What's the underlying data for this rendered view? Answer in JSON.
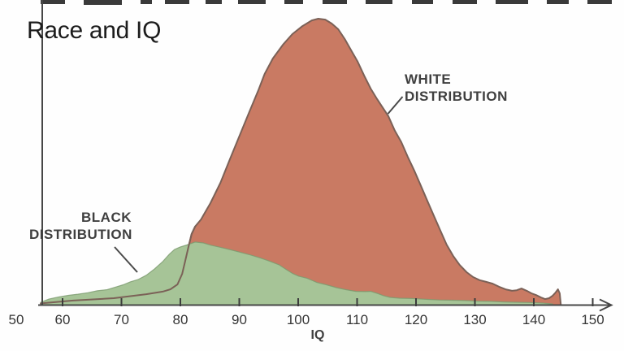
{
  "title": "Race and IQ",
  "labels": {
    "xlabel": "IQ"
  },
  "chart_data": {
    "type": "area",
    "title": "Race and IQ",
    "xlabel": "IQ",
    "ylabel": "",
    "x_range": [
      50,
      150
    ],
    "x_ticks": [
      50,
      60,
      70,
      80,
      90,
      100,
      110,
      120,
      130,
      140,
      150
    ],
    "y_axis_note": "relative frequency, unlabeled axis",
    "legend": "none (inline annotations with leader lines)",
    "annotations": [
      {
        "id": "white",
        "lines": [
          "WHITE",
          "DISTRIBUTION"
        ],
        "points_to": "red curve right flank near IQ 112"
      },
      {
        "id": "black",
        "lines": [
          "BLACK",
          "DISTRIBUTION"
        ],
        "points_to": "green curve left flank near IQ 73"
      }
    ],
    "series": [
      {
        "name": "WHITE DISTRIBUTION",
        "color": "#c97a63",
        "stroke": "#7b6157",
        "peak_iq": 103,
        "points": [
          [
            56.3,
            0.006
          ],
          [
            61.8,
            0.016
          ],
          [
            68.7,
            0.024
          ],
          [
            74.2,
            0.038
          ],
          [
            77.0,
            0.047
          ],
          [
            78.3,
            0.055
          ],
          [
            79.5,
            0.072
          ],
          [
            80.3,
            0.109
          ],
          [
            80.8,
            0.152
          ],
          [
            81.4,
            0.206
          ],
          [
            81.9,
            0.248
          ],
          [
            82.5,
            0.274
          ],
          [
            83.5,
            0.299
          ],
          [
            85.1,
            0.356
          ],
          [
            86.8,
            0.427
          ],
          [
            88.4,
            0.509
          ],
          [
            90.1,
            0.594
          ],
          [
            91.7,
            0.674
          ],
          [
            93.2,
            0.748
          ],
          [
            94.3,
            0.807
          ],
          [
            95.7,
            0.861
          ],
          [
            97.4,
            0.909
          ],
          [
            99.0,
            0.946
          ],
          [
            100.7,
            0.974
          ],
          [
            102.3,
            0.994
          ],
          [
            103.4,
            1.0
          ],
          [
            104.6,
            0.997
          ],
          [
            105.7,
            0.983
          ],
          [
            106.8,
            0.963
          ],
          [
            107.9,
            0.929
          ],
          [
            109.0,
            0.889
          ],
          [
            110.1,
            0.85
          ],
          [
            111.2,
            0.801
          ],
          [
            112.3,
            0.756
          ],
          [
            113.4,
            0.719
          ],
          [
            114.3,
            0.691
          ],
          [
            115.3,
            0.66
          ],
          [
            116.4,
            0.609
          ],
          [
            117.5,
            0.569
          ],
          [
            118.6,
            0.518
          ],
          [
            119.7,
            0.47
          ],
          [
            120.8,
            0.418
          ],
          [
            121.9,
            0.365
          ],
          [
            123.0,
            0.313
          ],
          [
            124.1,
            0.262
          ],
          [
            125.2,
            0.211
          ],
          [
            126.3,
            0.172
          ],
          [
            127.4,
            0.14
          ],
          [
            128.6,
            0.115
          ],
          [
            129.7,
            0.098
          ],
          [
            130.8,
            0.087
          ],
          [
            131.9,
            0.081
          ],
          [
            133.0,
            0.075
          ],
          [
            134.1,
            0.064
          ],
          [
            135.2,
            0.055
          ],
          [
            136.3,
            0.05
          ],
          [
            137.1,
            0.052
          ],
          [
            137.9,
            0.058
          ],
          [
            138.8,
            0.05
          ],
          [
            139.6,
            0.041
          ],
          [
            140.4,
            0.035
          ],
          [
            141.2,
            0.027
          ],
          [
            141.9,
            0.021
          ],
          [
            142.6,
            0.024
          ],
          [
            143.2,
            0.033
          ],
          [
            143.7,
            0.044
          ],
          [
            144.1,
            0.055
          ],
          [
            144.4,
            0.041
          ],
          [
            144.6,
            0.0
          ]
        ]
      },
      {
        "name": "BLACK DISTRIBUTION",
        "color": "#a6c497",
        "stroke": "#7b9a6e",
        "peak_iq": 82,
        "points": [
          [
            56.3,
            0.01
          ],
          [
            57.7,
            0.021
          ],
          [
            59.3,
            0.028
          ],
          [
            61.0,
            0.034
          ],
          [
            62.6,
            0.038
          ],
          [
            64.3,
            0.043
          ],
          [
            65.9,
            0.05
          ],
          [
            67.6,
            0.054
          ],
          [
            69.2,
            0.064
          ],
          [
            70.3,
            0.071
          ],
          [
            71.5,
            0.081
          ],
          [
            72.8,
            0.089
          ],
          [
            74.2,
            0.104
          ],
          [
            75.6,
            0.126
          ],
          [
            77.0,
            0.152
          ],
          [
            78.1,
            0.177
          ],
          [
            79.0,
            0.194
          ],
          [
            80.0,
            0.203
          ],
          [
            81.1,
            0.21
          ],
          [
            82.5,
            0.22
          ],
          [
            83.9,
            0.217
          ],
          [
            85.2,
            0.209
          ],
          [
            86.9,
            0.201
          ],
          [
            88.6,
            0.193
          ],
          [
            90.2,
            0.184
          ],
          [
            91.9,
            0.175
          ],
          [
            93.5,
            0.165
          ],
          [
            95.2,
            0.153
          ],
          [
            96.8,
            0.14
          ],
          [
            97.9,
            0.125
          ],
          [
            99.0,
            0.111
          ],
          [
            100.1,
            0.101
          ],
          [
            101.5,
            0.094
          ],
          [
            103.2,
            0.079
          ],
          [
            104.8,
            0.071
          ],
          [
            106.5,
            0.061
          ],
          [
            108.1,
            0.054
          ],
          [
            109.8,
            0.048
          ],
          [
            111.4,
            0.047
          ],
          [
            112.3,
            0.048
          ],
          [
            113.4,
            0.041
          ],
          [
            114.5,
            0.033
          ],
          [
            115.6,
            0.027
          ],
          [
            117.2,
            0.024
          ],
          [
            119.4,
            0.023
          ],
          [
            121.7,
            0.02
          ],
          [
            123.9,
            0.018
          ],
          [
            126.1,
            0.017
          ],
          [
            128.3,
            0.016
          ],
          [
            130.5,
            0.014
          ],
          [
            132.7,
            0.013
          ],
          [
            134.9,
            0.011
          ],
          [
            137.1,
            0.01
          ],
          [
            139.3,
            0.009
          ],
          [
            141.5,
            0.007
          ],
          [
            143.2,
            0.004
          ]
        ]
      }
    ],
    "colors": {
      "axis": "#474747",
      "annotation_text": "#3f3f3f",
      "tick_text": "#353535",
      "white_fill": "#c97a63",
      "black_fill": "#a6c497"
    }
  }
}
